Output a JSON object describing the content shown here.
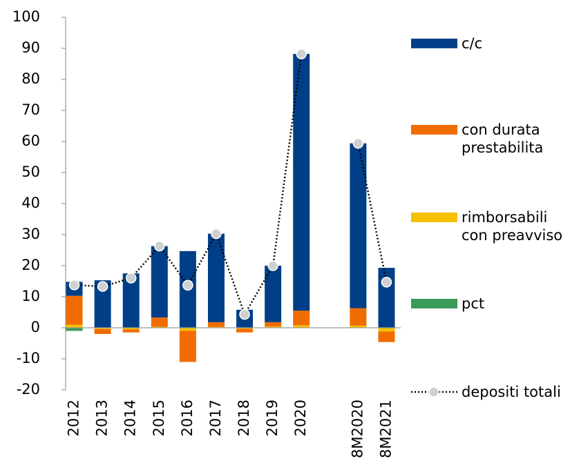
{
  "chart_data": {
    "type": "bar",
    "stacked": true,
    "categories": [
      "2012",
      "2013",
      "2014",
      "2015",
      "2016",
      "2017",
      "2018",
      "2019",
      "2020",
      null,
      "8M2020",
      "8M2021"
    ],
    "series": [
      {
        "name": "c/c",
        "color": "#003f87",
        "values": [
          4.5,
          15.3,
          17.5,
          23,
          24.7,
          28.5,
          5.8,
          18.2,
          82.7,
          null,
          53.1,
          19.3
        ]
      },
      {
        "name": "con durata prestabilita",
        "color": "#f06c00",
        "values": [
          9.3,
          -1.6,
          -1,
          3,
          -10,
          1.5,
          -1.2,
          1.4,
          4.7,
          null,
          5.6,
          -3.4
        ]
      },
      {
        "name": "rimborsabili con preavviso",
        "color": "#f5c000",
        "values": [
          1,
          -0.4,
          -0.5,
          0.3,
          -1,
          0.3,
          -0.3,
          0.4,
          0.8,
          null,
          0.7,
          -1.2
        ]
      },
      {
        "name": "pct",
        "color": "#3a9a5a",
        "values": [
          -1,
          0,
          0,
          0,
          0,
          0,
          0,
          0,
          0,
          null,
          0,
          0
        ]
      },
      {
        "name": "depositi totali",
        "type": "line",
        "color": "#000000",
        "marker_color": "#d0d0d0",
        "values": [
          13.8,
          13.3,
          16,
          26.3,
          13.7,
          30.3,
          4.3,
          20,
          88.2,
          null,
          59.4,
          14.7
        ]
      }
    ],
    "ylim": [
      -20,
      100
    ],
    "yticks": [
      -20,
      -10,
      0,
      10,
      20,
      30,
      40,
      50,
      60,
      70,
      80,
      90,
      100
    ]
  }
}
